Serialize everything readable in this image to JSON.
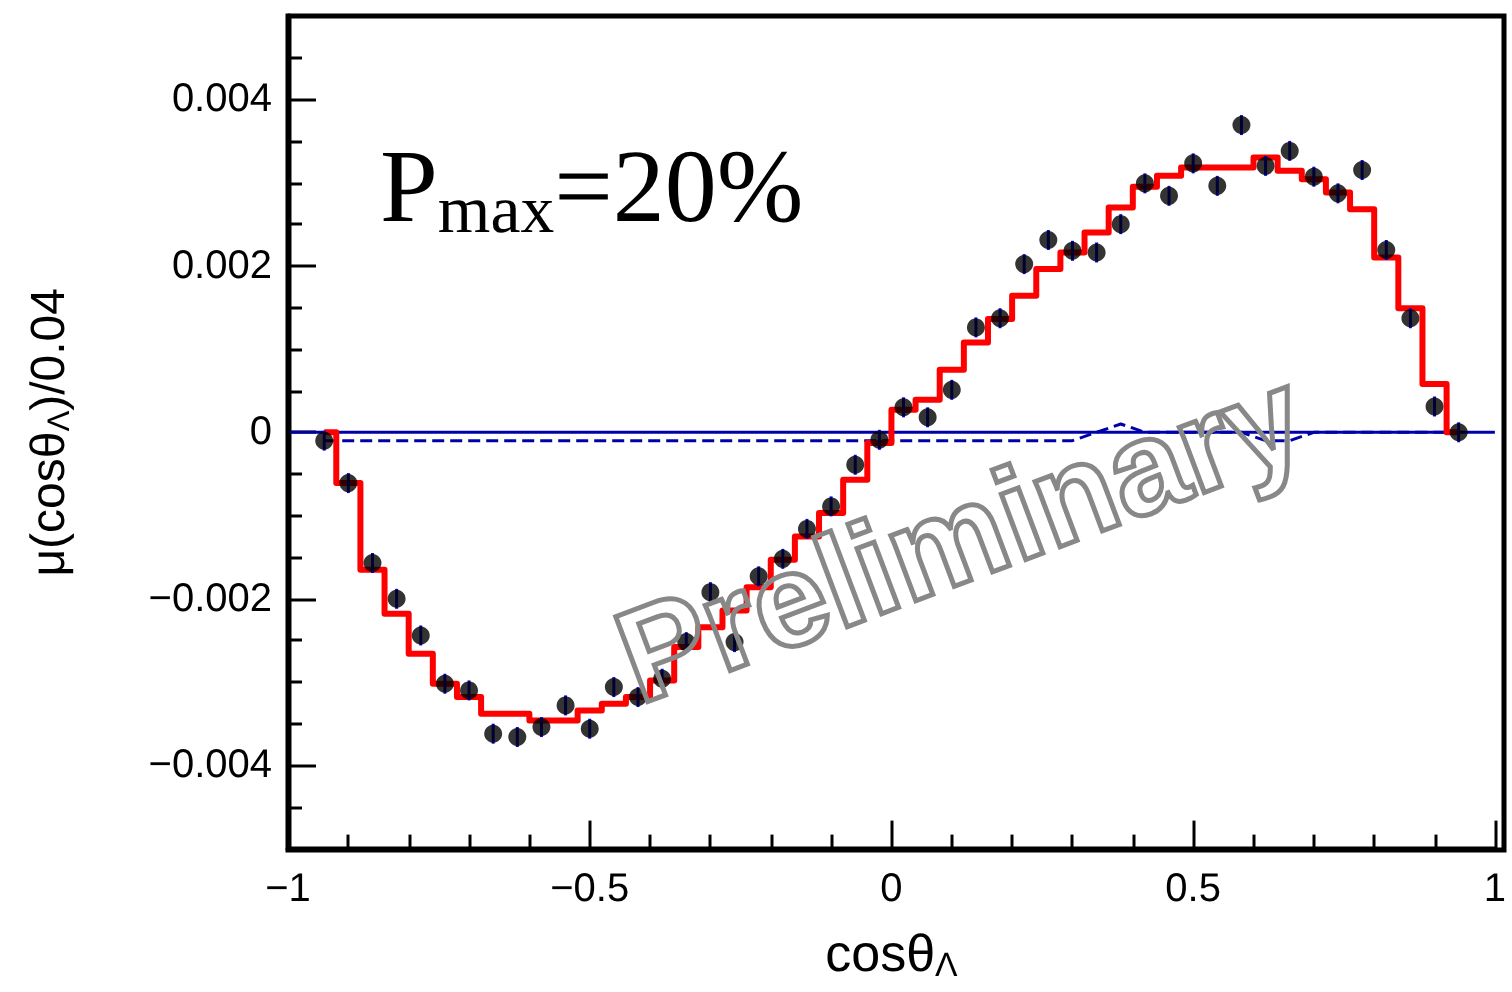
{
  "chart_data": {
    "type": "scatter",
    "xlabel": "cosθ$_{Λ}$",
    "ylabel": "μ(cosθ$_{Λ}$)/0.04",
    "annotations": [
      "P$_{max}$=20%",
      "Preliminary"
    ],
    "x": [
      -0.94,
      -0.9,
      -0.86,
      -0.82,
      -0.78,
      -0.74,
      -0.7,
      -0.66,
      -0.62,
      -0.58,
      -0.54,
      -0.5,
      -0.46,
      -0.42,
      -0.38,
      -0.34,
      -0.3,
      -0.26,
      -0.22,
      -0.18,
      -0.14,
      -0.1,
      -0.06,
      -0.02,
      0.02,
      0.06,
      0.1,
      0.14,
      0.18,
      0.22,
      0.26,
      0.3,
      0.34,
      0.38,
      0.42,
      0.46,
      0.5,
      0.54,
      0.58,
      0.62,
      0.66,
      0.7,
      0.74,
      0.78,
      0.82,
      0.86,
      0.9,
      0.94
    ],
    "series": [
      {
        "type": "step",
        "color": "#ff0000",
        "values": [
          0,
          -0.00061,
          -0.00165,
          -0.00218,
          -0.00266,
          -0.00302,
          -0.00318,
          -0.00338,
          -0.00338,
          -0.00346,
          -0.00346,
          -0.00334,
          -0.00326,
          -0.00318,
          -0.00298,
          -0.00258,
          -0.00234,
          -0.00214,
          -0.00186,
          -0.00153,
          -0.00125,
          -0.00097,
          -0.00057,
          -0.00013,
          0.00027,
          0.00039,
          0.00075,
          0.00108,
          0.00136,
          0.00164,
          0.00196,
          0.00216,
          0.0024,
          0.0027,
          0.00295,
          0.00308,
          0.00318,
          0.00318,
          0.00318,
          0.0033,
          0.00314,
          0.00304,
          0.00288,
          0.00268,
          0.0021,
          0.00149,
          0.00058,
          0
        ]
      },
      {
        "type": "line",
        "color": "#0000aa",
        "line_style": "dashed",
        "marker": "none",
        "values": [
          -0.0001,
          -0.0001,
          -0.0001,
          -0.0001,
          -0.0001,
          -0.0001,
          -0.0001,
          -0.0001,
          -0.0001,
          -0.0001,
          -0.0001,
          -0.0001,
          -0.0001,
          -0.0001,
          -0.0001,
          -0.0001,
          -0.0001,
          -0.0001,
          -0.0001,
          -0.0001,
          -0.0001,
          -0.0001,
          -0.0001,
          -0.0001,
          -0.0001,
          -0.0001,
          -0.0001,
          -0.0001,
          -0.0001,
          -0.0001,
          -0.0001,
          -0.0001,
          0,
          0.0001,
          0,
          0,
          0,
          0,
          0,
          -0.0001,
          -0.0001,
          0,
          0,
          0,
          0,
          0,
          0,
          0
        ]
      },
      {
        "color": "#000000",
        "marker": "circle",
        "errors": [
          0.00012,
          0.00012,
          0.00012,
          0.00012,
          0.00012,
          0.00012,
          0.00012,
          0.00012,
          0.00012,
          0.00012,
          0.00012,
          0.00012,
          0.00012,
          0.00012,
          0.00012,
          0.00012,
          0.00012,
          0.00012,
          0.00012,
          0.00012,
          0.00012,
          0.00012,
          0.00012,
          0.00012,
          0.00012,
          0.00012,
          0.00012,
          0.00012,
          0.00012,
          0.00012,
          0.00012,
          0.00012,
          0.00012,
          0.00012,
          0.00012,
          0.00012,
          0.00012,
          0.00012,
          0.00012,
          0.00012,
          0.00012,
          0.00012,
          0.00012,
          0.00012,
          0.00012,
          0.00012,
          0.00012,
          0.00012
        ],
        "values": [
          -0.0001,
          -0.00061,
          -0.00157,
          -0.002,
          -0.00244,
          -0.00302,
          -0.0031,
          -0.00362,
          -0.00366,
          -0.00354,
          -0.00328,
          -0.00356,
          -0.00306,
          -0.00318,
          -0.00296,
          -0.00252,
          -0.00192,
          -0.00252,
          -0.00173,
          -0.00152,
          -0.00116,
          -0.00089,
          -0.00039,
          -9e-05,
          0.0003,
          0.00018,
          0.00051,
          0.00126,
          0.00137,
          0.00202,
          0.00231,
          0.00218,
          0.00216,
          0.0025,
          0.00299,
          0.00284,
          0.00323,
          0.00296,
          0.00369,
          0.0032,
          0.00338,
          0.00307,
          0.00287,
          0.00315,
          0.00219,
          0.00137,
          0.00031,
          0
        ]
      }
    ],
    "ref_lines": [
      {
        "axis": "y",
        "value": 0,
        "color": "#0000aa"
      }
    ],
    "xlim": [
      -1,
      1
    ],
    "xticks": [
      -1,
      -0.5,
      0,
      0.5,
      1
    ],
    "ylim": [
      -0.005,
      0.005
    ],
    "yticks": [
      -0.004,
      -0.002,
      0,
      0.002,
      0.004
    ],
    "grid": false
  }
}
